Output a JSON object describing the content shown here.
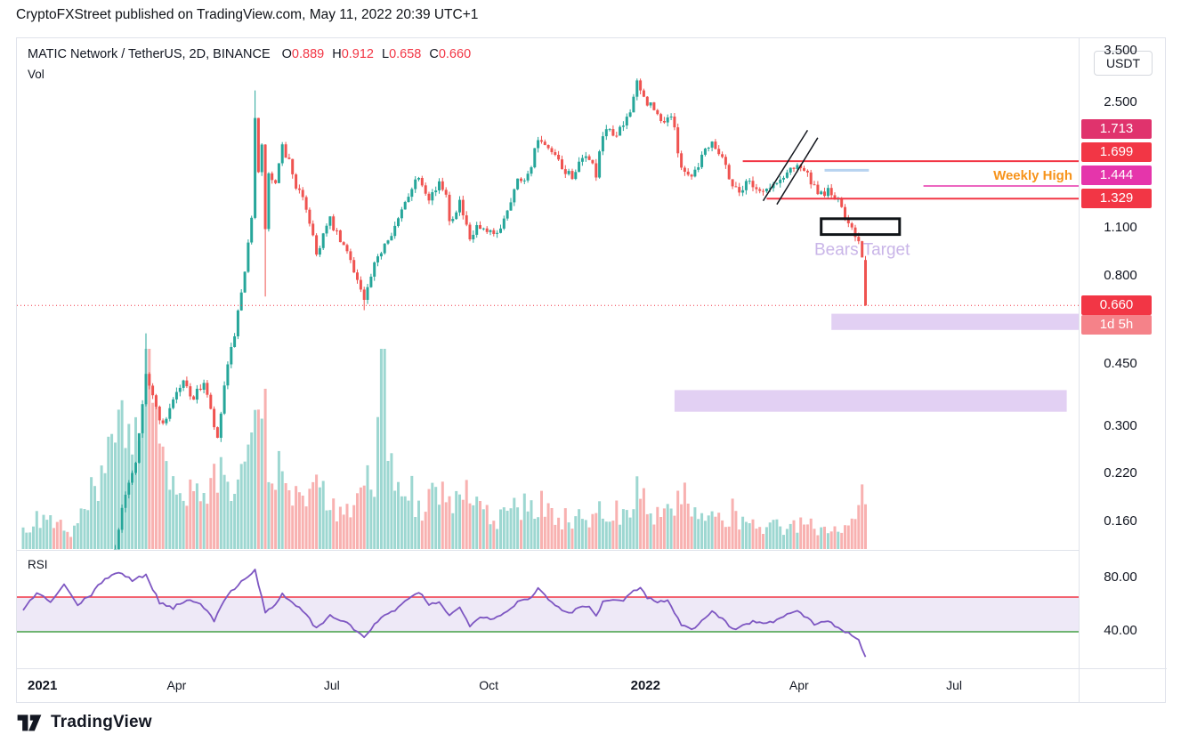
{
  "header": {
    "attribution": "CryptoFXStreet published on TradingView.com, May 11, 2022 20:39 UTC+1"
  },
  "footer": {
    "brand": "TradingView"
  },
  "toolbar": {
    "currency_button": "USDT"
  },
  "legend": {
    "symbol_line": "MATIC Network / TetherUS, 2D, BINANCE",
    "ohlc": {
      "o_label": "O",
      "o": "0.889",
      "h_label": "H",
      "h": "0.912",
      "l_label": "L",
      "l": "0.658",
      "c_label": "C",
      "c": "0.660"
    },
    "volume_label": "Vol",
    "rsi_label": "RSI"
  },
  "price_axis": {
    "ticks": [
      "3.500",
      "2.500",
      "1.100",
      "0.800",
      "0.450",
      "0.300",
      "0.220",
      "0.160"
    ],
    "badges": [
      {
        "price": "1.713",
        "value": 1.713,
        "color": "#e0336d"
      },
      {
        "price": "1.699",
        "value": 1.699,
        "color": "#f23645"
      },
      {
        "price": "1.444",
        "value": 1.444,
        "color": "#e535ab"
      },
      {
        "price": "1.329",
        "value": 1.329,
        "color": "#f23645"
      }
    ],
    "last_price": {
      "price": "0.660",
      "value": 0.66,
      "color": "#f23645",
      "countdown": "1d 5h",
      "countdown_color": "#f58289"
    }
  },
  "rsi_axis": {
    "ticks": [
      {
        "label": "80.00",
        "value": 80
      },
      {
        "label": "40.00",
        "value": 40
      }
    ]
  },
  "time_axis": {
    "ticks": [
      {
        "label": "2021",
        "bar": 0,
        "bold": true
      },
      {
        "label": "Apr",
        "bar": 45,
        "bold": false
      },
      {
        "label": "Jul",
        "bar": 90.5,
        "bold": false
      },
      {
        "label": "Oct",
        "bar": 136.5,
        "bold": false
      },
      {
        "label": "2022",
        "bar": 182.5,
        "bold": true
      },
      {
        "label": "Apr",
        "bar": 227.5,
        "bold": false
      },
      {
        "label": "Jul",
        "bar": 273,
        "bold": false
      }
    ]
  },
  "colors": {
    "up": "#26a69a",
    "down": "#ef5350",
    "vol_up": "rgba(38,166,154,0.45)",
    "vol_down": "rgba(239,83,80,0.45)",
    "last_price": "#f23645",
    "resistance": "#f23645",
    "weekly_high_line": "#e535ab",
    "weekly_high_text": "#f7931a",
    "rsi_line": "#7e57c2",
    "rsi_upper": "#f23645",
    "rsi_lower": "#43a047",
    "band_fill": "rgba(126,87,194,0.13)",
    "zone_fill": "rgba(171,119,221,0.35)",
    "bears_target": "#c9b5e8",
    "trendline": "#15181f",
    "blue_line": "#b7d3f0",
    "target_box_border": "#101418"
  },
  "chart_data": {
    "type": "candlestick",
    "symbol": "MATIC Network / TetherUS",
    "exchange": "BINANCE",
    "timeframe": "2D",
    "start_date": "2021-01-01",
    "bar_interval_days": 2,
    "num_bars": 248,
    "price_scale": "log",
    "visible_price_range": [
      0.14,
      3.6
    ],
    "last_candle": {
      "open": 0.889,
      "high": 0.912,
      "low": 0.658,
      "close": 0.66
    },
    "levels": {
      "last_price": 0.66,
      "resistance": [
        1.699,
        1.329
      ],
      "weekly_high": 1.444
    },
    "rsi_bands": {
      "upper": 66,
      "lower": 40
    },
    "close_waypoints": [
      [
        0,
        0.018
      ],
      [
        8,
        0.03
      ],
      [
        15,
        0.027
      ],
      [
        22,
        0.09
      ],
      [
        26,
        0.12
      ],
      [
        28,
        0.155
      ],
      [
        31,
        0.21
      ],
      [
        33,
        0.24
      ],
      [
        36,
        0.43
      ],
      [
        38,
        0.36
      ],
      [
        41,
        0.3
      ],
      [
        44,
        0.36
      ],
      [
        47,
        0.4
      ],
      [
        50,
        0.36
      ],
      [
        53,
        0.4
      ],
      [
        57,
        0.27
      ],
      [
        59,
        0.39
      ],
      [
        62,
        0.55
      ],
      [
        65,
        0.8
      ],
      [
        67,
        1.2
      ],
      [
        68,
        2.3
      ],
      [
        69,
        1.55
      ],
      [
        70,
        1.85
      ],
      [
        71,
        1.1
      ],
      [
        72,
        1.55
      ],
      [
        74,
        1.45
      ],
      [
        76,
        1.85
      ],
      [
        78,
        1.7
      ],
      [
        80,
        1.45
      ],
      [
        83,
        1.25
      ],
      [
        85,
        1.05
      ],
      [
        86,
        0.92
      ],
      [
        88,
        1.05
      ],
      [
        90,
        1.15
      ],
      [
        93,
        1.0
      ],
      [
        96,
        0.9
      ],
      [
        100,
        0.68
      ],
      [
        103,
        0.85
      ],
      [
        106,
        1.0
      ],
      [
        110,
        1.15
      ],
      [
        114,
        1.45
      ],
      [
        116,
        1.55
      ],
      [
        119,
        1.35
      ],
      [
        122,
        1.45
      ],
      [
        124,
        1.4
      ],
      [
        125,
        1.15
      ],
      [
        128,
        1.3
      ],
      [
        131,
        1.0
      ],
      [
        133,
        1.1
      ],
      [
        136,
        1.05
      ],
      [
        139,
        1.05
      ],
      [
        142,
        1.25
      ],
      [
        145,
        1.5
      ],
      [
        148,
        1.55
      ],
      [
        151,
        1.95
      ],
      [
        153,
        1.85
      ],
      [
        156,
        1.75
      ],
      [
        158,
        1.6
      ],
      [
        161,
        1.55
      ],
      [
        164,
        1.7
      ],
      [
        166,
        1.75
      ],
      [
        168,
        1.55
      ],
      [
        170,
        2.0
      ],
      [
        172,
        2.1
      ],
      [
        174,
        2.0
      ],
      [
        176,
        2.15
      ],
      [
        178,
        2.4
      ],
      [
        180,
        2.8
      ],
      [
        182,
        2.55
      ],
      [
        184,
        2.45
      ],
      [
        187,
        2.2
      ],
      [
        190,
        2.3
      ],
      [
        193,
        1.65
      ],
      [
        195,
        1.55
      ],
      [
        197,
        1.6
      ],
      [
        200,
        1.85
      ],
      [
        202,
        1.95
      ],
      [
        205,
        1.75
      ],
      [
        208,
        1.45
      ],
      [
        210,
        1.4
      ],
      [
        213,
        1.5
      ],
      [
        216,
        1.4
      ],
      [
        219,
        1.42
      ],
      [
        222,
        1.5
      ],
      [
        225,
        1.62
      ],
      [
        227,
        1.68
      ],
      [
        230,
        1.55
      ],
      [
        233,
        1.35
      ],
      [
        236,
        1.4
      ],
      [
        239,
        1.3
      ],
      [
        241,
        1.18
      ],
      [
        243,
        1.12
      ],
      [
        245,
        1.0
      ],
      [
        246,
        0.89
      ],
      [
        247,
        0.66
      ]
    ],
    "candle_overrides": {
      "36": {
        "h": 0.55
      },
      "68": {
        "h": 2.7
      },
      "71": {
        "l": 0.7
      },
      "100": {
        "l": 0.64
      },
      "180": {
        "h": 2.92
      },
      "247": {
        "o": 0.889,
        "h": 0.912,
        "l": 0.658,
        "c": 0.66
      }
    },
    "volume_waypoints": [
      [
        0,
        0.1
      ],
      [
        5,
        0.16
      ],
      [
        10,
        0.12
      ],
      [
        15,
        0.1
      ],
      [
        20,
        0.28
      ],
      [
        24,
        0.38
      ],
      [
        28,
        0.6
      ],
      [
        32,
        0.5
      ],
      [
        36,
        1.4
      ],
      [
        38,
        0.85
      ],
      [
        40,
        0.45
      ],
      [
        44,
        0.3
      ],
      [
        48,
        0.28
      ],
      [
        52,
        0.25
      ],
      [
        56,
        0.35
      ],
      [
        60,
        0.42
      ],
      [
        64,
        0.48
      ],
      [
        68,
        0.65
      ],
      [
        71,
        0.62
      ],
      [
        74,
        0.42
      ],
      [
        78,
        0.3
      ],
      [
        82,
        0.25
      ],
      [
        86,
        0.32
      ],
      [
        90,
        0.22
      ],
      [
        95,
        0.18
      ],
      [
        100,
        0.3
      ],
      [
        103,
        0.45
      ],
      [
        105,
        1.3
      ],
      [
        107,
        0.4
      ],
      [
        110,
        0.32
      ],
      [
        114,
        0.3
      ],
      [
        118,
        0.24
      ],
      [
        122,
        0.28
      ],
      [
        125,
        0.34
      ],
      [
        128,
        0.24
      ],
      [
        131,
        0.3
      ],
      [
        135,
        0.18
      ],
      [
        139,
        0.16
      ],
      [
        143,
        0.2
      ],
      [
        147,
        0.22
      ],
      [
        151,
        0.26
      ],
      [
        155,
        0.18
      ],
      [
        159,
        0.16
      ],
      [
        163,
        0.16
      ],
      [
        167,
        0.2
      ],
      [
        170,
        0.26
      ],
      [
        174,
        0.2
      ],
      [
        178,
        0.24
      ],
      [
        180,
        0.3
      ],
      [
        184,
        0.22
      ],
      [
        188,
        0.18
      ],
      [
        191,
        0.2
      ],
      [
        193,
        0.3
      ],
      [
        196,
        0.2
      ],
      [
        200,
        0.16
      ],
      [
        204,
        0.14
      ],
      [
        208,
        0.2
      ],
      [
        212,
        0.13
      ],
      [
        216,
        0.11
      ],
      [
        220,
        0.12
      ],
      [
        224,
        0.13
      ],
      [
        228,
        0.13
      ],
      [
        232,
        0.12
      ],
      [
        236,
        0.11
      ],
      [
        240,
        0.12
      ],
      [
        243,
        0.14
      ],
      [
        245,
        0.18
      ],
      [
        246,
        0.26
      ],
      [
        247,
        0.34
      ]
    ],
    "rsi_waypoints": [
      [
        0,
        55
      ],
      [
        4,
        70
      ],
      [
        8,
        62
      ],
      [
        12,
        75
      ],
      [
        16,
        60
      ],
      [
        20,
        68
      ],
      [
        24,
        80
      ],
      [
        28,
        85
      ],
      [
        32,
        78
      ],
      [
        36,
        83
      ],
      [
        40,
        62
      ],
      [
        44,
        58
      ],
      [
        48,
        64
      ],
      [
        52,
        62
      ],
      [
        56,
        48
      ],
      [
        60,
        68
      ],
      [
        64,
        78
      ],
      [
        68,
        86
      ],
      [
        71,
        55
      ],
      [
        74,
        60
      ],
      [
        76,
        68
      ],
      [
        80,
        60
      ],
      [
        84,
        50
      ],
      [
        86,
        42
      ],
      [
        90,
        52
      ],
      [
        94,
        48
      ],
      [
        97,
        42
      ],
      [
        100,
        36
      ],
      [
        103,
        45
      ],
      [
        106,
        52
      ],
      [
        110,
        58
      ],
      [
        114,
        66
      ],
      [
        116,
        70
      ],
      [
        119,
        60
      ],
      [
        122,
        63
      ],
      [
        125,
        52
      ],
      [
        128,
        58
      ],
      [
        131,
        45
      ],
      [
        134,
        52
      ],
      [
        137,
        50
      ],
      [
        140,
        52
      ],
      [
        143,
        58
      ],
      [
        146,
        64
      ],
      [
        149,
        66
      ],
      [
        151,
        72
      ],
      [
        154,
        64
      ],
      [
        157,
        58
      ],
      [
        160,
        54
      ],
      [
        163,
        58
      ],
      [
        166,
        60
      ],
      [
        168,
        52
      ],
      [
        170,
        62
      ],
      [
        173,
        65
      ],
      [
        176,
        64
      ],
      [
        179,
        70
      ],
      [
        181,
        74
      ],
      [
        183,
        66
      ],
      [
        186,
        62
      ],
      [
        189,
        64
      ],
      [
        193,
        45
      ],
      [
        196,
        42
      ],
      [
        199,
        48
      ],
      [
        202,
        55
      ],
      [
        205,
        50
      ],
      [
        208,
        42
      ],
      [
        211,
        44
      ],
      [
        214,
        48
      ],
      [
        217,
        46
      ],
      [
        220,
        48
      ],
      [
        223,
        52
      ],
      [
        226,
        56
      ],
      [
        229,
        52
      ],
      [
        232,
        46
      ],
      [
        235,
        48
      ],
      [
        238,
        45
      ],
      [
        241,
        40
      ],
      [
        243,
        38
      ],
      [
        245,
        33
      ],
      [
        246,
        28
      ],
      [
        247,
        22
      ]
    ],
    "drawings": {
      "resistance_lines": [
        {
          "price": 1.699,
          "from_bar": 211
        },
        {
          "price": 1.329,
          "from_bar": 218
        }
      ],
      "weekly_high": {
        "price": 1.444,
        "from_bar": 264,
        "label": "Weekly High"
      },
      "trend_channel": [
        {
          "from": [
            217,
            1.31
          ],
          "to": [
            230,
            2.08
          ]
        },
        {
          "from": [
            221,
            1.28
          ],
          "to": [
            233,
            1.98
          ]
        }
      ],
      "blue_level": {
        "price": 1.6,
        "from_bar": 235,
        "to_bar": 248
      },
      "breakdown_box": {
        "price_from": 1.05,
        "price_to": 1.165,
        "from_bar": 234,
        "to_bar": 257
      },
      "target_zones": [
        {
          "price_from": 0.562,
          "price_to": 0.625,
          "from_bar": 237,
          "to_bar": 310
        },
        {
          "price_from": 0.329,
          "price_to": 0.379,
          "from_bar": 191,
          "to_bar": 306
        }
      ],
      "bears_target_text": {
        "bar": 246,
        "price": 0.92,
        "text": "Bears Target"
      }
    }
  }
}
